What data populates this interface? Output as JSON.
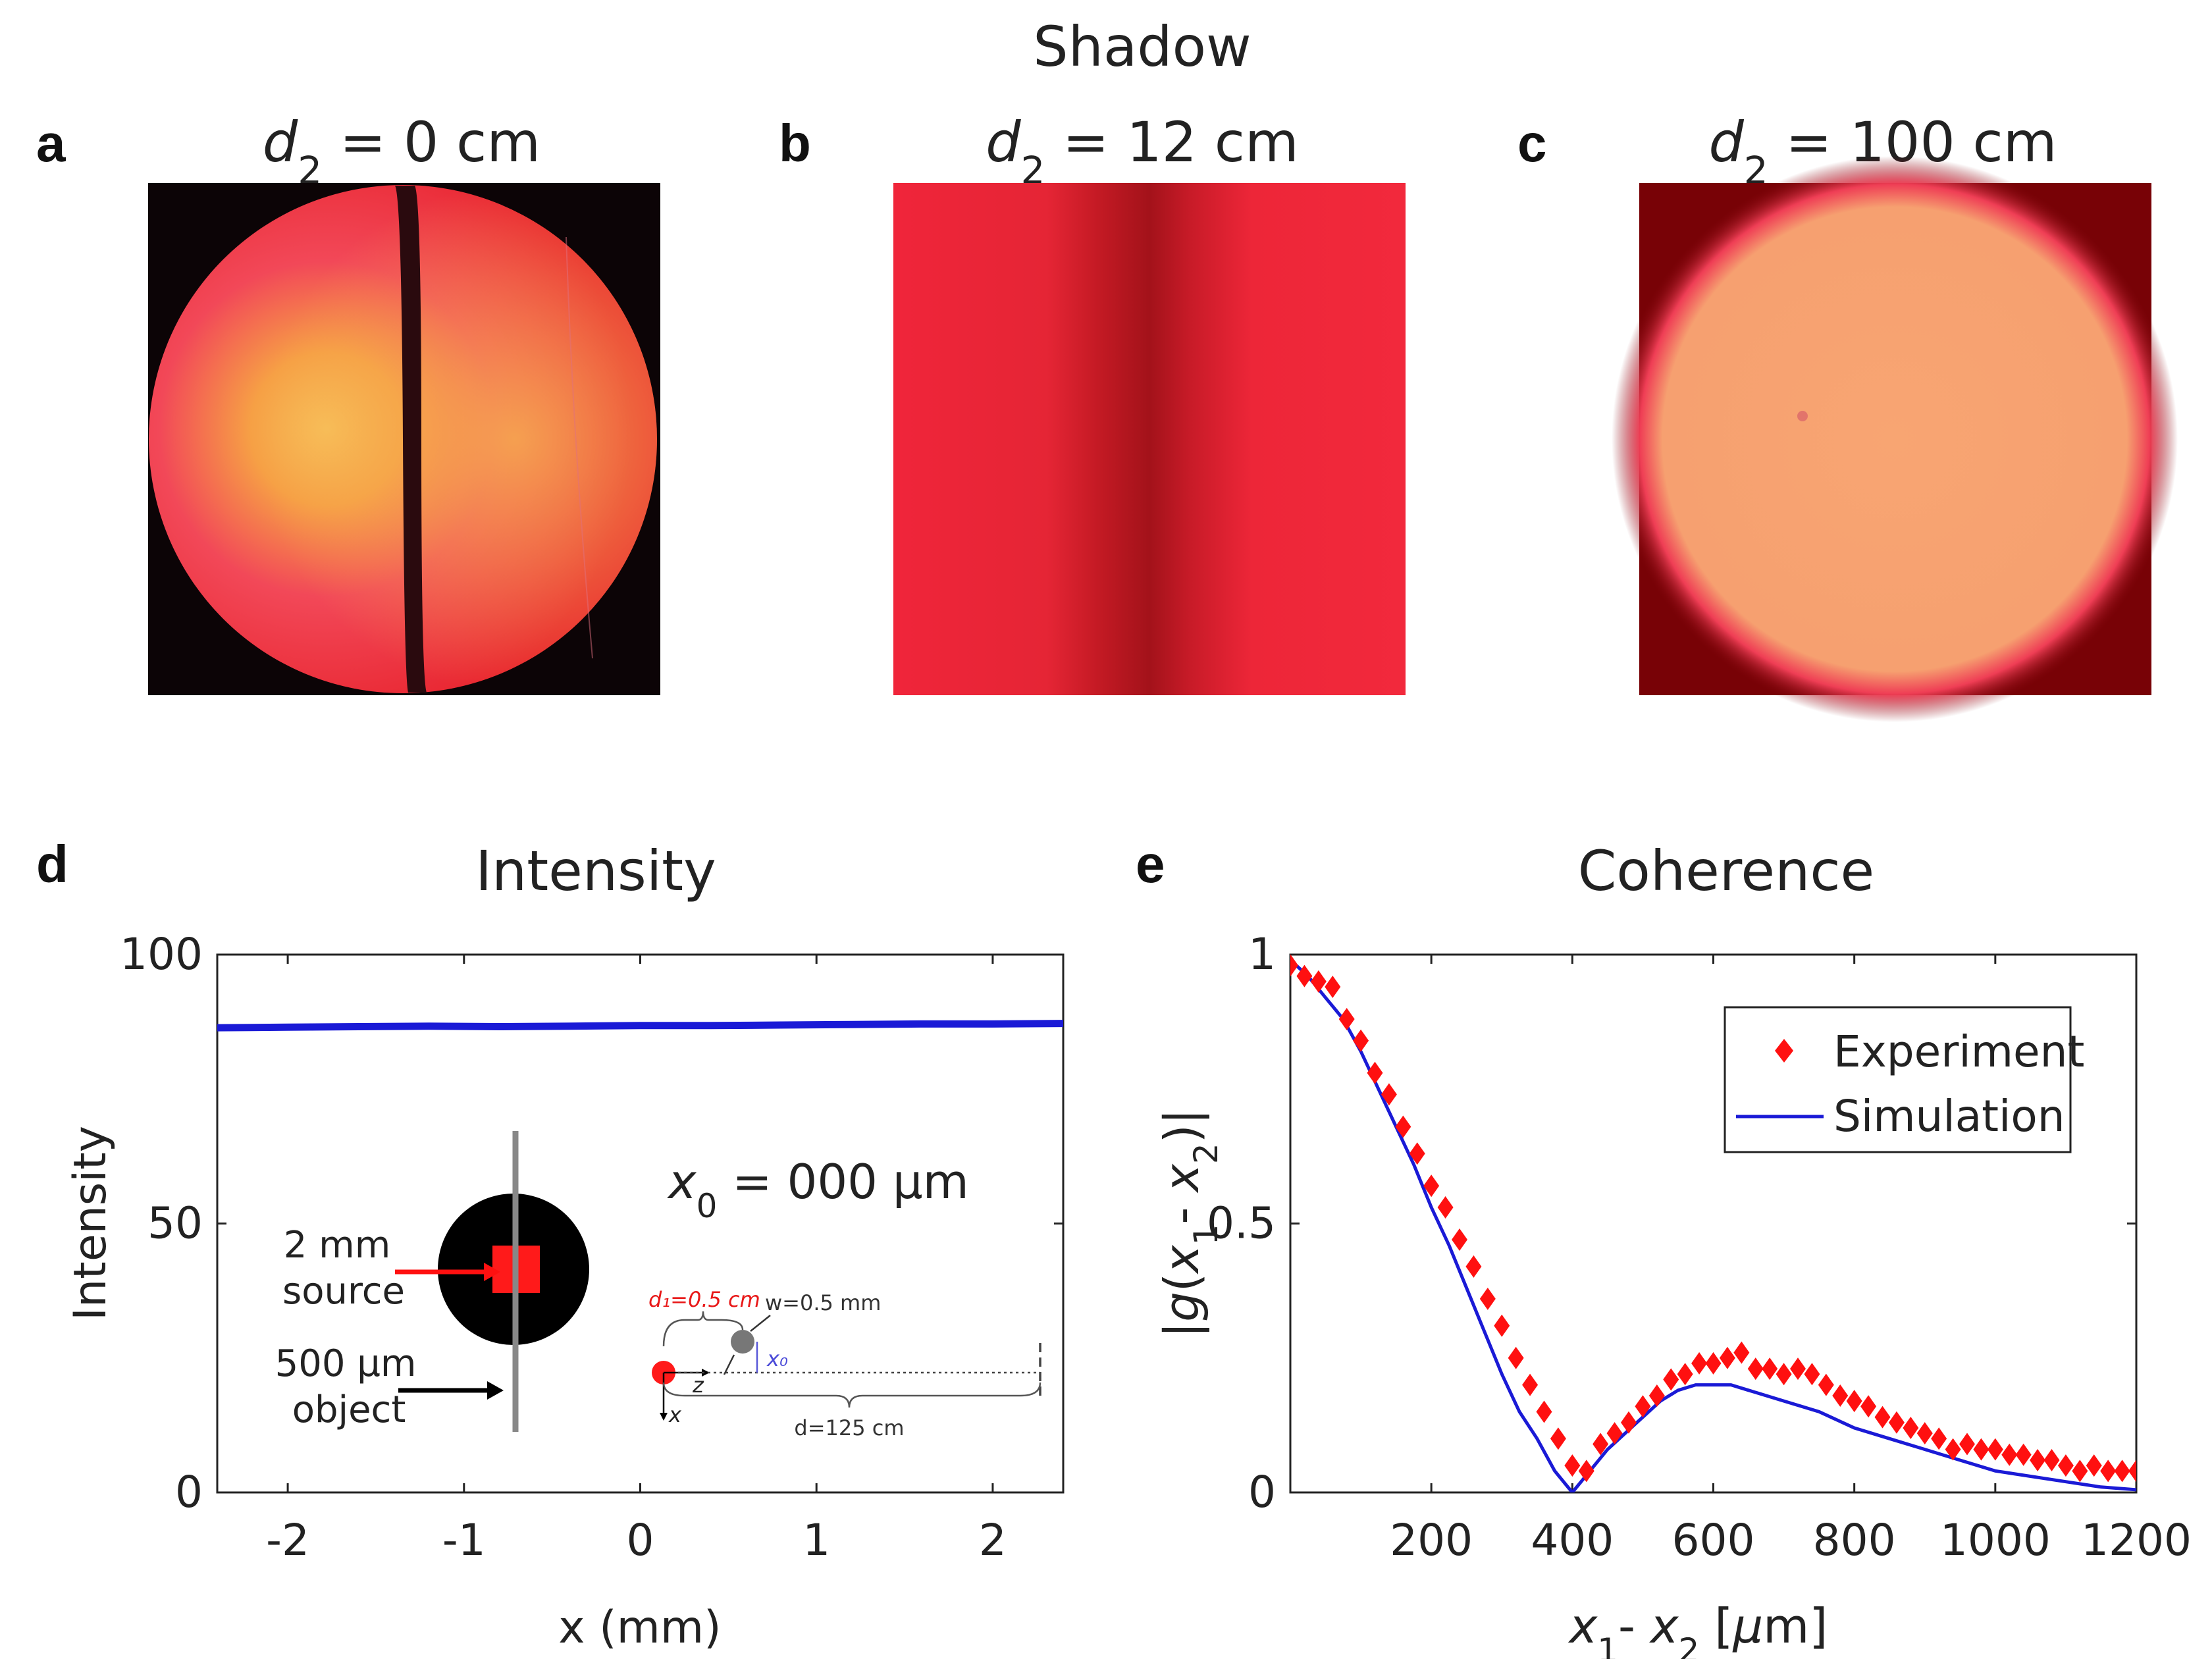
{
  "figure": {
    "shadow_title": "Shadow",
    "panel_letters": [
      "a",
      "b",
      "c",
      "d",
      "e"
    ],
    "panel_a_label": {
      "var": "d",
      "sub": "2",
      "rest": " = 0 cm"
    },
    "panel_b_label": {
      "var": "d",
      "sub": "2",
      "rest": " = 12 cm"
    },
    "panel_c_label": {
      "var": "d",
      "sub": "2",
      "rest": " = 100 cm"
    },
    "colors": {
      "red_beam": "#ff2a3c",
      "dark_red": "#6a0000",
      "orange_spot": "#f7a070",
      "blue_line": "#1a1ad6",
      "marker_red": "#ff1010"
    }
  },
  "inset": {
    "x0_var": "x",
    "x0_sub": "0",
    "x0_value": " =  000 μm",
    "source_label_1": "2 mm",
    "source_label_2": "source",
    "object_label_1": "500 μm",
    "object_label_2": "object",
    "d1_label": "d₁=0.5 cm",
    "w_label": "w=0.5 mm",
    "x0_small": "x₀",
    "z_label": "z",
    "x_label": "x",
    "d_label": "d=125 cm"
  },
  "chart_data": [
    {
      "type": "line",
      "title": "Intensity",
      "xlabel": "x (mm)",
      "ylabel": "Intensity",
      "xlim": [
        -2.4,
        2.4
      ],
      "ylim": [
        0,
        100
      ],
      "xticks": [
        -2,
        -1,
        0,
        1,
        2
      ],
      "xtick_labels": [
        "-2",
        "-1",
        "0",
        "1",
        "2"
      ],
      "yticks": [
        0,
        50,
        100
      ],
      "ytick_labels": [
        "0",
        "50",
        "100"
      ],
      "series": [
        {
          "name": "Intensity",
          "x": [
            -2.4,
            -2.0,
            -1.6,
            -1.2,
            -0.8,
            -0.4,
            0.0,
            0.4,
            0.8,
            1.2,
            1.6,
            2.0,
            2.4
          ],
          "values": [
            86.4,
            86.5,
            86.6,
            86.7,
            86.6,
            86.7,
            86.8,
            86.8,
            86.9,
            87.0,
            87.1,
            87.1,
            87.2
          ]
        }
      ]
    },
    {
      "type": "scatter",
      "title": "Coherence",
      "xlabel": "x₁- x₂ [μm]",
      "ylabel": "|g(x₁- x₂)|",
      "xlim": [
        0,
        1200
      ],
      "ylim": [
        0,
        1
      ],
      "xticks": [
        200,
        400,
        600,
        800,
        1000,
        1200
      ],
      "xtick_labels": [
        "200",
        "400",
        "600",
        "800",
        "1000",
        "1200"
      ],
      "yticks": [
        0,
        0.5,
        1
      ],
      "ytick_labels": [
        "0",
        "0.5",
        "1"
      ],
      "legend": {
        "position": "top-right",
        "entries": [
          "Experiment",
          "Simulation"
        ]
      },
      "series": [
        {
          "name": "Experiment",
          "x": [
            0,
            20,
            40,
            60,
            80,
            100,
            120,
            140,
            160,
            180,
            200,
            220,
            240,
            260,
            280,
            300,
            320,
            340,
            360,
            380,
            400,
            420,
            440,
            460,
            480,
            500,
            520,
            540,
            560,
            580,
            600,
            620,
            640,
            660,
            680,
            700,
            720,
            740,
            760,
            780,
            800,
            820,
            840,
            860,
            880,
            900,
            920,
            940,
            960,
            980,
            1000,
            1020,
            1040,
            1060,
            1080,
            1100,
            1120,
            1140,
            1160,
            1180,
            1200
          ],
          "values": [
            0.98,
            0.96,
            0.95,
            0.94,
            0.88,
            0.84,
            0.78,
            0.74,
            0.68,
            0.63,
            0.57,
            0.53,
            0.47,
            0.42,
            0.36,
            0.31,
            0.25,
            0.2,
            0.15,
            0.1,
            0.05,
            0.04,
            0.09,
            0.11,
            0.13,
            0.16,
            0.18,
            0.21,
            0.22,
            0.24,
            0.24,
            0.25,
            0.26,
            0.23,
            0.23,
            0.22,
            0.23,
            0.22,
            0.2,
            0.18,
            0.17,
            0.16,
            0.14,
            0.13,
            0.12,
            0.11,
            0.1,
            0.08,
            0.09,
            0.08,
            0.08,
            0.07,
            0.07,
            0.06,
            0.06,
            0.05,
            0.04,
            0.05,
            0.04,
            0.04,
            0.04
          ]
        },
        {
          "name": "Simulation",
          "x": [
            0,
            25,
            50,
            75,
            100,
            125,
            150,
            175,
            200,
            225,
            250,
            275,
            300,
            325,
            350,
            375,
            400,
            425,
            450,
            475,
            500,
            525,
            550,
            575,
            600,
            625,
            650,
            700,
            750,
            800,
            850,
            900,
            950,
            1000,
            1050,
            1100,
            1150,
            1200
          ],
          "values": [
            0.99,
            0.96,
            0.92,
            0.88,
            0.82,
            0.75,
            0.68,
            0.61,
            0.53,
            0.46,
            0.38,
            0.3,
            0.22,
            0.15,
            0.1,
            0.04,
            0.0,
            0.04,
            0.08,
            0.11,
            0.14,
            0.17,
            0.19,
            0.2,
            0.2,
            0.2,
            0.19,
            0.17,
            0.15,
            0.12,
            0.1,
            0.08,
            0.06,
            0.04,
            0.03,
            0.02,
            0.01,
            0.005
          ]
        }
      ]
    }
  ]
}
